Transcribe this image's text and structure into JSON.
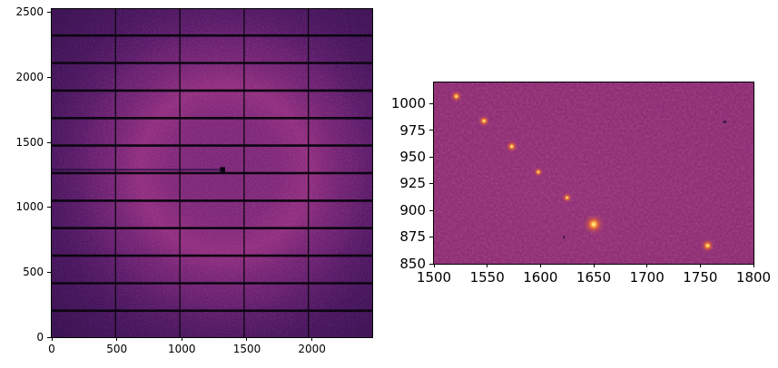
{
  "figure": {
    "background": "#ffffff",
    "description": "Matplotlib figure: X-ray detector frame (left) and zoomed detector region with diffraction peaks (right)"
  },
  "colors": {
    "axis": "#000000",
    "tick_label": "#000000",
    "left_base": "#56196a",
    "ring_glow": "#ab3689",
    "vignette": "#1a0836",
    "module_gap": "#0c0511",
    "beam_arm": "#1d0f3a",
    "beamstop": "#0a0514",
    "right_base": "#8f2c72",
    "spot_core": "#fff7c0",
    "spot_mid": "#fdc04a",
    "spot_halo": "#f3702d",
    "dark_pixel": "#221040"
  },
  "chart_data": [
    {
      "type": "heatmap",
      "panel": "full-detector-image",
      "title": "",
      "xlabel": "",
      "ylabel": "",
      "xlim": [
        0,
        2463
      ],
      "ylim": [
        0,
        2527
      ],
      "xticks": [
        0,
        500,
        1000,
        1500,
        2000
      ],
      "yticks": [
        0,
        500,
        1000,
        1500,
        2000,
        2500
      ],
      "grid": false,
      "legend": "none",
      "colormap": "magma-like purple/magenta",
      "features": {
        "module_gap_columns_x": [
          490.5,
          984.5,
          1478.5,
          1972.5
        ],
        "module_gap_rows_y": [
          203.5,
          415.5,
          627.5,
          839.5,
          1051.5,
          1263.5,
          1475.5,
          1687.5,
          1899.5,
          2111.5,
          2323.5
        ],
        "beam_center": [
          1326,
          1290
        ],
        "beamstop_arm": {
          "y": 1290,
          "x_from": 0,
          "x_to": 1326
        },
        "diffuse_ring_radius": 640
      }
    },
    {
      "type": "heatmap",
      "panel": "zoomed-detector-region",
      "title": "",
      "xlabel": "",
      "ylabel": "",
      "xlim": [
        1500,
        1800
      ],
      "ylim": [
        850,
        1020
      ],
      "xticks": [
        1500,
        1550,
        1600,
        1650,
        1700,
        1750,
        1800
      ],
      "yticks": [
        850,
        875,
        900,
        925,
        950,
        975,
        1000
      ],
      "grid": false,
      "legend": "none",
      "colormap": "magma-like magenta",
      "peaks": [
        {
          "x": 1521,
          "y": 1007,
          "size": 2.6
        },
        {
          "x": 1547,
          "y": 984,
          "size": 2.6
        },
        {
          "x": 1573,
          "y": 960,
          "size": 2.6
        },
        {
          "x": 1598,
          "y": 936,
          "size": 2.1
        },
        {
          "x": 1625,
          "y": 912,
          "size": 2.2
        },
        {
          "x": 1650,
          "y": 887,
          "size": 4.6
        },
        {
          "x": 1757,
          "y": 867,
          "size": 3.0
        }
      ],
      "dark_pixels": [
        {
          "x": 1773,
          "y": 983,
          "w": 4,
          "h": 2
        },
        {
          "x": 1622,
          "y": 875,
          "w": 1.5,
          "h": 3
        }
      ]
    }
  ]
}
